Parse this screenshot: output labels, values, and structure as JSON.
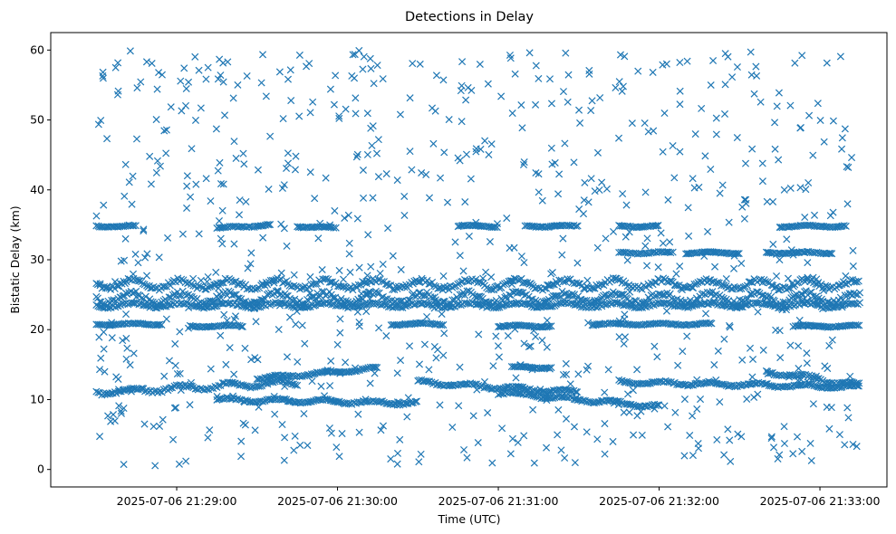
{
  "chart_data": {
    "type": "scatter",
    "title": "Detections in Delay",
    "xlabel": "Time (UTC)",
    "ylabel": "Bistatic Delay (km)",
    "xlim": [
      "2025-07-06 21:28:13",
      "2025-07-06 21:33:25"
    ],
    "ylim": [
      -2.5,
      62.5
    ],
    "x_ticks": [
      "2025-07-06 21:29:00",
      "2025-07-06 21:30:00",
      "2025-07-06 21:31:00",
      "2025-07-06 21:32:00",
      "2025-07-06 21:33:00"
    ],
    "y_ticks": [
      0,
      10,
      20,
      30,
      40,
      50,
      60
    ],
    "marker": "x",
    "color": "#1f77b4",
    "grid": false,
    "time_range": [
      "2025-07-06 21:28:30",
      "2025-07-06 21:33:15"
    ],
    "series": [
      {
        "bands": [
          {
            "start": "2025-07-06 21:28:30",
            "end": "2025-07-06 21:33:15",
            "y_start": 26.5,
            "y_end": 26.5,
            "wiggle": 1.0
          },
          {
            "start": "2025-07-06 21:28:30",
            "end": "2025-07-06 21:33:15",
            "y_start": 24.5,
            "y_end": 24.5,
            "wiggle": 1.2
          },
          {
            "start": "2025-07-06 21:28:30",
            "end": "2025-07-06 21:33:15",
            "y_start": 23.5,
            "y_end": 23.5,
            "wiggle": 0.5
          },
          {
            "start": "2025-07-06 21:28:30",
            "end": "2025-07-06 21:29:45",
            "y_start": 11.0,
            "y_end": 12.5,
            "wiggle": 0.6
          },
          {
            "start": "2025-07-06 21:29:15",
            "end": "2025-07-06 21:30:30",
            "y_start": 10.0,
            "y_end": 9.5,
            "wiggle": 0.4
          },
          {
            "start": "2025-07-06 21:29:30",
            "end": "2025-07-06 21:30:15",
            "y_start": 13.0,
            "y_end": 14.5,
            "wiggle": 0.3
          },
          {
            "start": "2025-07-06 21:30:30",
            "end": "2025-07-06 21:31:30",
            "y_start": 12.5,
            "y_end": 11.0,
            "wiggle": 0.4
          },
          {
            "start": "2025-07-06 21:31:00",
            "end": "2025-07-06 21:32:00",
            "y_start": 11.0,
            "y_end": 9.0,
            "wiggle": 0.4
          },
          {
            "start": "2025-07-06 21:31:45",
            "end": "2025-07-06 21:33:15",
            "y_start": 12.5,
            "y_end": 11.8,
            "wiggle": 0.4
          },
          {
            "start": "2025-07-06 21:32:40",
            "end": "2025-07-06 21:33:15",
            "y_start": 14.0,
            "y_end": 12.0,
            "wiggle": 0.5
          },
          {
            "start": "2025-07-06 21:28:30",
            "end": "2025-07-06 21:28:45",
            "y_start": 34.8,
            "y_end": 34.8,
            "wiggle": 0.2
          },
          {
            "start": "2025-07-06 21:29:15",
            "end": "2025-07-06 21:29:35",
            "y_start": 34.5,
            "y_end": 35.0,
            "wiggle": 0.2
          },
          {
            "start": "2025-07-06 21:29:45",
            "end": "2025-07-06 21:30:00",
            "y_start": 34.8,
            "y_end": 34.5,
            "wiggle": 0.2
          },
          {
            "start": "2025-07-06 21:30:45",
            "end": "2025-07-06 21:31:00",
            "y_start": 34.8,
            "y_end": 34.8,
            "wiggle": 0.2
          },
          {
            "start": "2025-07-06 21:31:10",
            "end": "2025-07-06 21:31:30",
            "y_start": 34.8,
            "y_end": 34.8,
            "wiggle": 0.2
          },
          {
            "start": "2025-07-06 21:31:45",
            "end": "2025-07-06 21:32:00",
            "y_start": 34.8,
            "y_end": 34.8,
            "wiggle": 0.2
          },
          {
            "start": "2025-07-06 21:32:45",
            "end": "2025-07-06 21:33:10",
            "y_start": 34.8,
            "y_end": 34.8,
            "wiggle": 0.2
          },
          {
            "start": "2025-07-06 21:28:30",
            "end": "2025-07-06 21:28:55",
            "y_start": 20.8,
            "y_end": 20.8,
            "wiggle": 0.2
          },
          {
            "start": "2025-07-06 21:29:05",
            "end": "2025-07-06 21:29:25",
            "y_start": 20.5,
            "y_end": 20.5,
            "wiggle": 0.2
          },
          {
            "start": "2025-07-06 21:30:20",
            "end": "2025-07-06 21:30:40",
            "y_start": 20.8,
            "y_end": 20.8,
            "wiggle": 0.2
          },
          {
            "start": "2025-07-06 21:31:00",
            "end": "2025-07-06 21:31:20",
            "y_start": 20.5,
            "y_end": 20.5,
            "wiggle": 0.2
          },
          {
            "start": "2025-07-06 21:31:35",
            "end": "2025-07-06 21:32:20",
            "y_start": 20.8,
            "y_end": 20.8,
            "wiggle": 0.2
          },
          {
            "start": "2025-07-06 21:32:50",
            "end": "2025-07-06 21:33:15",
            "y_start": 20.5,
            "y_end": 20.5,
            "wiggle": 0.2
          },
          {
            "start": "2025-07-06 21:31:45",
            "end": "2025-07-06 21:32:05",
            "y_start": 31.0,
            "y_end": 31.0,
            "wiggle": 0.2
          },
          {
            "start": "2025-07-06 21:32:10",
            "end": "2025-07-06 21:32:30",
            "y_start": 31.0,
            "y_end": 31.0,
            "wiggle": 0.2
          },
          {
            "start": "2025-07-06 21:32:40",
            "end": "2025-07-06 21:33:05",
            "y_start": 31.0,
            "y_end": 31.0,
            "wiggle": 0.2
          },
          {
            "start": "2025-07-06 21:31:05",
            "end": "2025-07-06 21:31:20",
            "y_start": 14.6,
            "y_end": 14.6,
            "wiggle": 0.2
          }
        ],
        "clutter": {
          "y_range": [
            0.5,
            60
          ],
          "density": "uniform random"
        }
      }
    ]
  }
}
